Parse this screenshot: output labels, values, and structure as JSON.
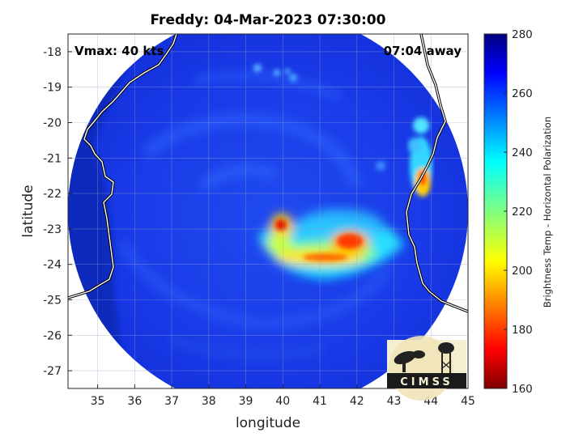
{
  "title": "Freddy: 04-Mar-2023 07:30:00",
  "annotation_left": "Vmax: 40 kts",
  "annotation_right": "07:04 away",
  "logo_text": "CIMSS",
  "chart_data": {
    "type": "heatmap",
    "title": "Freddy: 04-Mar-2023 07:30:00",
    "xlabel": "longitude",
    "ylabel": "latitude",
    "xlim": [
      34.2,
      45.0
    ],
    "ylim": [
      -27.5,
      -17.5
    ],
    "xticks": [
      35,
      36,
      37,
      38,
      39,
      40,
      41,
      42,
      43,
      44,
      45
    ],
    "yticks": [
      -18,
      -19,
      -20,
      -21,
      -22,
      -23,
      -24,
      -25,
      -26,
      -27
    ],
    "grid": true,
    "swath": {
      "center_lon": 39.6,
      "center_lat": -22.5,
      "radius_deg": 5.4
    },
    "colorbar": {
      "label": "Brightness Temp - Horizontal Polarization",
      "range": [
        160,
        280
      ],
      "ticks": [
        160,
        180,
        200,
        220,
        240,
        260,
        280
      ],
      "colormap": "jet"
    },
    "features": [
      {
        "name": "cold core",
        "lon": 40.0,
        "lat": -22.95,
        "tb": 178
      },
      {
        "name": "rainband east",
        "lon": 42.0,
        "lat": -23.7,
        "tb": 182
      },
      {
        "name": "rainband mid",
        "lon": 41.3,
        "lat": -23.9,
        "tb": 192
      },
      {
        "name": "madagascar coast cell",
        "lon": 43.8,
        "lat": -21.8,
        "tb": 195
      },
      {
        "name": "madagascar north cell",
        "lon": 43.8,
        "lat": -20.1,
        "tb": 232
      }
    ]
  },
  "colors": {
    "ocean_background": "#1536e6",
    "land_dark": "#0a1f96",
    "coastline": "#ffffff"
  }
}
